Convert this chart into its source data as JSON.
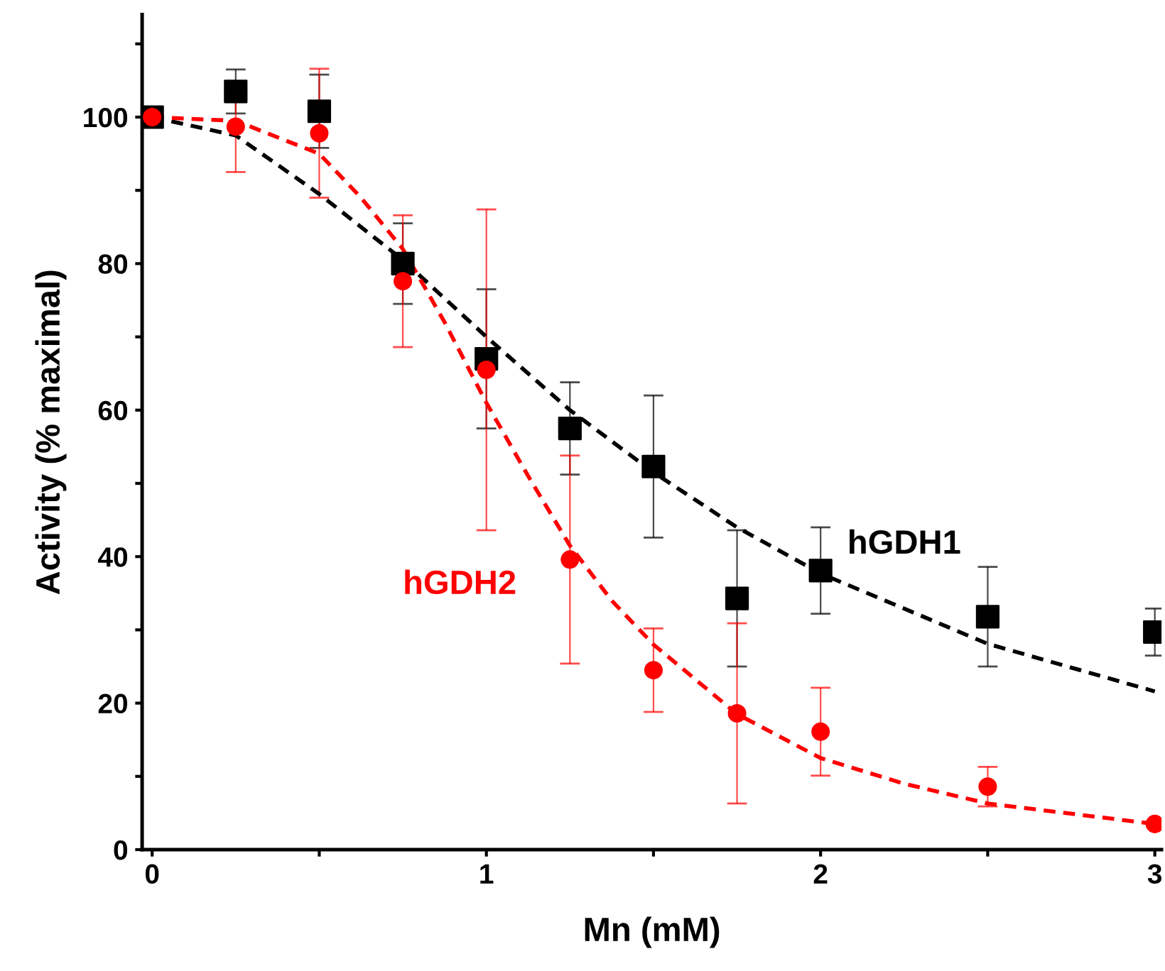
{
  "chart_data": {
    "type": "scatter",
    "xlabel": "Mn (mM)",
    "ylabel": "Activity (% maximal)",
    "x": [
      0,
      0.25,
      0.5,
      0.75,
      1.0,
      1.25,
      1.5,
      1.75,
      2.0,
      2.5,
      3.0
    ],
    "series": [
      {
        "name": "hGDH1",
        "color": "#000000",
        "marker": "square",
        "values": [
          100,
          103.5,
          100.8,
          80,
          67,
          57.5,
          52.3,
          34.3,
          38.1,
          31.8,
          29.7
        ],
        "errors": [
          null,
          3,
          5,
          5.5,
          9.5,
          6.3,
          9.7,
          9.3,
          5.9,
          6.8,
          3.2
        ]
      },
      {
        "name": "hGDH2",
        "color": "#ff0000",
        "marker": "circle",
        "values": [
          100,
          98.7,
          97.8,
          77.6,
          65.5,
          39.6,
          24.5,
          18.6,
          16.1,
          8.6,
          3.5
        ],
        "errors": [
          null,
          6.2,
          8.8,
          9,
          21.9,
          14.2,
          5.7,
          12.3,
          6,
          2.7,
          null
        ]
      },
      {
        "type": "line",
        "color": "#000000",
        "line_style": "dashed",
        "marker": "none",
        "x": [
          0,
          0.25,
          0.5,
          0.75,
          1.0,
          1.25,
          1.5,
          1.75,
          2.0,
          2.5,
          3.0
        ],
        "values": [
          100,
          97.5,
          89.5,
          80.5,
          70,
          60,
          51.5,
          44,
          37.7,
          28.1,
          21.6
        ]
      },
      {
        "type": "line",
        "color": "#ff0000",
        "line_style": "dashed",
        "marker": "none",
        "x": [
          0,
          0.25,
          0.5,
          0.625,
          0.75,
          0.875,
          1.0,
          1.125,
          1.25,
          1.375,
          1.5,
          1.75,
          2.0,
          2.25,
          2.5,
          3.0
        ],
        "values": [
          100,
          99.5,
          95,
          89,
          82,
          72,
          61,
          51,
          41.5,
          34,
          28,
          18.5,
          12.5,
          9,
          6.3,
          3.5
        ]
      }
    ],
    "xlim": [
      -0.03,
      3.02
    ],
    "ylim": [
      0,
      114
    ],
    "xticks": [
      0,
      {
        "value": 0.5,
        "label": null
      },
      1,
      {
        "value": 1.5,
        "label": null
      },
      2,
      {
        "value": 2.5,
        "label": null
      },
      3
    ],
    "yticks": [
      0,
      {
        "value": 10,
        "label": null
      },
      20,
      {
        "value": 30,
        "label": null
      },
      40,
      {
        "value": 50,
        "label": null
      },
      60,
      {
        "value": 70,
        "label": null
      },
      80,
      {
        "value": 90,
        "label": null
      },
      100,
      {
        "value": 110,
        "label": null
      }
    ],
    "grid": false,
    "legend": false
  }
}
